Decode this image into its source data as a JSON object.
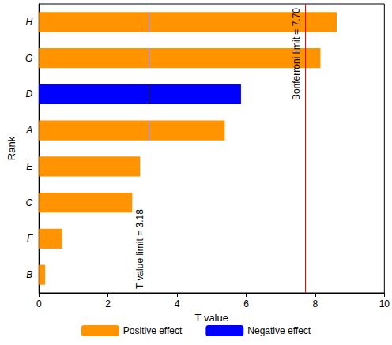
{
  "chart_data": {
    "type": "bar",
    "orientation": "horizontal",
    "stacked": true,
    "x_label": "T value",
    "y_label": "Rank",
    "categories": [
      "B",
      "F",
      "C",
      "E",
      "A",
      "D",
      "G",
      "H"
    ],
    "series": [
      {
        "name": "Positive effect",
        "color": "#ff9400",
        "values": [
          0.18,
          0.67,
          2.7,
          2.93,
          5.38,
          null,
          8.15,
          8.62
        ]
      },
      {
        "name": "Negative effect",
        "color": "#0000ff",
        "values": [
          null,
          null,
          null,
          null,
          null,
          5.85,
          null,
          null
        ]
      }
    ],
    "xlim": [
      0,
      10
    ],
    "xticks": [
      0,
      2,
      4,
      6,
      8,
      10
    ],
    "grid": false,
    "legend": "bottom",
    "annotations": [
      {
        "x": 3.18,
        "label": "T value limit = 3.18",
        "color": "#000000"
      },
      {
        "x": 7.7,
        "label": "Bonferroni limit = 7.70",
        "color": "#ff0000"
      }
    ]
  }
}
